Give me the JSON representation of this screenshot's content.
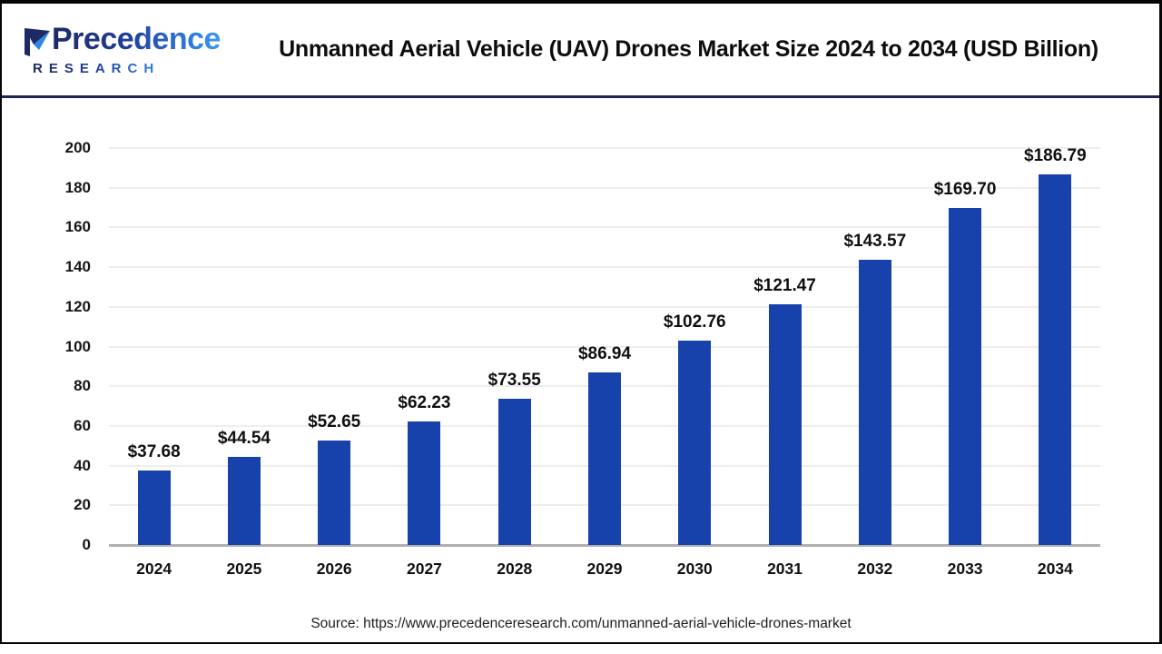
{
  "header": {
    "logo": {
      "brand": "Precedence",
      "subbrand": "RESEARCH"
    },
    "title": "Unmanned Aerial Vehicle (UAV) Drones Market Size 2024 to 2034 (USD Billion)"
  },
  "chart_data": {
    "type": "bar",
    "title": "Unmanned Aerial Vehicle (UAV) Drones Market Size 2024 to 2034 (USD Billion)",
    "categories": [
      "2024",
      "2025",
      "2026",
      "2027",
      "2028",
      "2029",
      "2030",
      "2031",
      "2032",
      "2033",
      "2034"
    ],
    "values": [
      37.68,
      44.54,
      52.65,
      62.23,
      73.55,
      86.94,
      102.76,
      121.47,
      143.57,
      169.7,
      186.79
    ],
    "data_labels": [
      "$37.68",
      "$44.54",
      "$52.65",
      "$62.23",
      "$73.55",
      "$86.94",
      "$102.76",
      "$121.47",
      "$143.57",
      "$169.70",
      "$186.79"
    ],
    "xlabel": "",
    "ylabel": "",
    "ylim": [
      0,
      200
    ],
    "ytick_step": 20,
    "ytick_labels": [
      "0",
      "20",
      "40",
      "60",
      "80",
      "100",
      "120",
      "140",
      "160",
      "180",
      "200"
    ],
    "grid": true,
    "legend": false,
    "bar_color": "#1741ab"
  },
  "footer": {
    "source": "Source: https://www.precedenceresearch.com/unmanned-aerial-vehicle-drones-market"
  },
  "colors": {
    "bar": "#1741ab",
    "header_divider": "#1e2455",
    "gridline": "#eeeeee",
    "baseline": "#b0b0b0",
    "logo_navy": "#1c2a66",
    "logo_blue": "#2e86e5",
    "frame": "#060606"
  }
}
